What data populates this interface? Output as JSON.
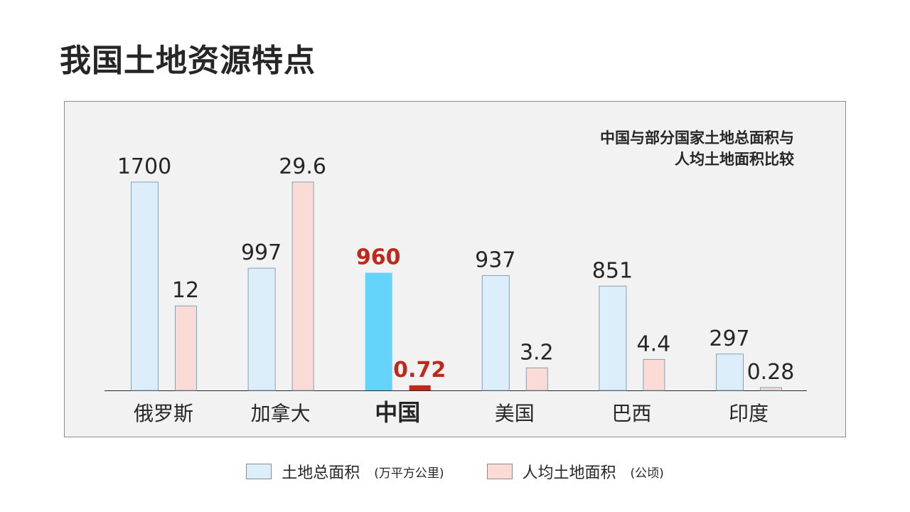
{
  "page": {
    "title": "我国土地资源特点"
  },
  "legend": {
    "items": [
      {
        "label": "土地总面积",
        "unit": "(万平方公里)",
        "color": "#ddeefb",
        "icon": "legend-swatch-blue"
      },
      {
        "label": "人均土地面积",
        "unit": "(公顷)",
        "color": "#fadbd6",
        "icon": "legend-swatch-pink"
      }
    ]
  },
  "chart_data": {
    "type": "bar",
    "title_lines": [
      "中国与部分国家土地总面积与",
      "人均土地面积比较"
    ],
    "categories": [
      "俄罗斯",
      "加拿大",
      "中国",
      "美国",
      "巴西",
      "印度"
    ],
    "highlight_index": 2,
    "series": [
      {
        "name": "土地总面积 (万平方公里)",
        "values": [
          1700,
          997,
          960,
          937,
          851,
          297
        ],
        "labels": [
          "1700",
          "997",
          "960",
          "937",
          "851",
          "297"
        ],
        "ymax": 1700,
        "color": "#ddeefb",
        "highlight_color": "#66d3fa"
      },
      {
        "name": "人均土地面积 (公顷)",
        "values": [
          12,
          29.6,
          0.72,
          3.2,
          4.4,
          0.28
        ],
        "labels": [
          "12",
          "29.6",
          "0.72",
          "3.2",
          "4.4",
          "0.28"
        ],
        "ymax": 29.6,
        "color": "#fadbd6",
        "highlight_color": "#c0281a"
      }
    ],
    "highlight_label_color": "#c0281a",
    "grid": false,
    "legend_position": "bottom"
  }
}
